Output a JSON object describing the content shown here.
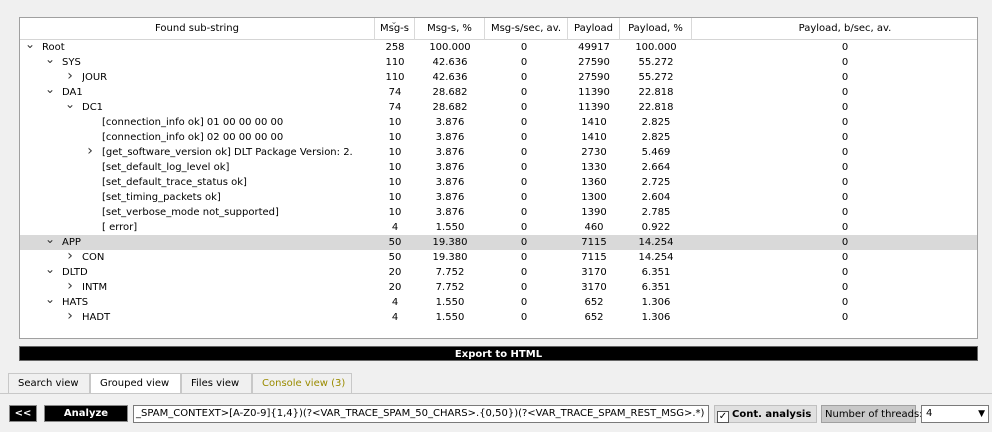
{
  "headers": {
    "name": "Found sub-string",
    "msgs": "Msg-s",
    "msgs_pct": "Msg-s, %",
    "msgs_rate": "Msg-s/sec, av.",
    "payload": "Payload",
    "payload_pct": "Payload, %",
    "payload_rate": "Payload, b/sec, av."
  },
  "rows": [
    {
      "level": 0,
      "arrow": "down",
      "name": "Root",
      "msgs": "258",
      "msgs_pct": "100.000",
      "msgs_rate": "0",
      "payload": "49917",
      "payload_pct": "100.000",
      "payload_rate": "0"
    },
    {
      "level": 1,
      "arrow": "down",
      "name": "SYS",
      "msgs": "110",
      "msgs_pct": "42.636",
      "msgs_rate": "0",
      "payload": "27590",
      "payload_pct": "55.272",
      "payload_rate": "0"
    },
    {
      "level": 2,
      "arrow": "right",
      "name": "JOUR",
      "msgs": "110",
      "msgs_pct": "42.636",
      "msgs_rate": "0",
      "payload": "27590",
      "payload_pct": "55.272",
      "payload_rate": "0"
    },
    {
      "level": 1,
      "arrow": "down",
      "name": "DA1",
      "msgs": "74",
      "msgs_pct": "28.682",
      "msgs_rate": "0",
      "payload": "11390",
      "payload_pct": "22.818",
      "payload_rate": "0"
    },
    {
      "level": 2,
      "arrow": "down",
      "name": "DC1",
      "msgs": "74",
      "msgs_pct": "28.682",
      "msgs_rate": "0",
      "payload": "11390",
      "payload_pct": "22.818",
      "payload_rate": "0"
    },
    {
      "level": 3,
      "arrow": "",
      "name": "[connection_info ok] 01 00 00 00 00",
      "msgs": "10",
      "msgs_pct": "3.876",
      "msgs_rate": "0",
      "payload": "1410",
      "payload_pct": "2.825",
      "payload_rate": "0"
    },
    {
      "level": 3,
      "arrow": "",
      "name": "[connection_info ok] 02 00 00 00 00",
      "msgs": "10",
      "msgs_pct": "3.876",
      "msgs_rate": "0",
      "payload": "1410",
      "payload_pct": "2.825",
      "payload_rate": "0"
    },
    {
      "level": 3,
      "arrow": "right",
      "name": "[get_software_version ok] DLT Package Version: 2.",
      "msgs": "10",
      "msgs_pct": "3.876",
      "msgs_rate": "0",
      "payload": "2730",
      "payload_pct": "5.469",
      "payload_rate": "0"
    },
    {
      "level": 3,
      "arrow": "",
      "name": "[set_default_log_level ok]",
      "msgs": "10",
      "msgs_pct": "3.876",
      "msgs_rate": "0",
      "payload": "1330",
      "payload_pct": "2.664",
      "payload_rate": "0"
    },
    {
      "level": 3,
      "arrow": "",
      "name": "[set_default_trace_status ok]",
      "msgs": "10",
      "msgs_pct": "3.876",
      "msgs_rate": "0",
      "payload": "1360",
      "payload_pct": "2.725",
      "payload_rate": "0"
    },
    {
      "level": 3,
      "arrow": "",
      "name": "[set_timing_packets ok]",
      "msgs": "10",
      "msgs_pct": "3.876",
      "msgs_rate": "0",
      "payload": "1300",
      "payload_pct": "2.604",
      "payload_rate": "0"
    },
    {
      "level": 3,
      "arrow": "",
      "name": "[set_verbose_mode not_supported]",
      "msgs": "10",
      "msgs_pct": "3.876",
      "msgs_rate": "0",
      "payload": "1390",
      "payload_pct": "2.785",
      "payload_rate": "0"
    },
    {
      "level": 3,
      "arrow": "",
      "name": "[ error]",
      "msgs": "4",
      "msgs_pct": "1.550",
      "msgs_rate": "0",
      "payload": "460",
      "payload_pct": "0.922",
      "payload_rate": "0"
    },
    {
      "level": 1,
      "arrow": "down",
      "name": "APP",
      "msgs": "50",
      "msgs_pct": "19.380",
      "msgs_rate": "0",
      "payload": "7115",
      "payload_pct": "14.254",
      "payload_rate": "0",
      "selected": true
    },
    {
      "level": 2,
      "arrow": "right",
      "name": "CON",
      "msgs": "50",
      "msgs_pct": "19.380",
      "msgs_rate": "0",
      "payload": "7115",
      "payload_pct": "14.254",
      "payload_rate": "0"
    },
    {
      "level": 1,
      "arrow": "down",
      "name": "DLTD",
      "msgs": "20",
      "msgs_pct": "7.752",
      "msgs_rate": "0",
      "payload": "3170",
      "payload_pct": "6.351",
      "payload_rate": "0"
    },
    {
      "level": 2,
      "arrow": "right",
      "name": "INTM",
      "msgs": "20",
      "msgs_pct": "7.752",
      "msgs_rate": "0",
      "payload": "3170",
      "payload_pct": "6.351",
      "payload_rate": "0"
    },
    {
      "level": 1,
      "arrow": "down",
      "name": "HATS",
      "msgs": "4",
      "msgs_pct": "1.550",
      "msgs_rate": "0",
      "payload": "652",
      "payload_pct": "1.306",
      "payload_rate": "0"
    },
    {
      "level": 2,
      "arrow": "right",
      "name": "HADT",
      "msgs": "4",
      "msgs_pct": "1.550",
      "msgs_rate": "0",
      "payload": "652",
      "payload_pct": "1.306",
      "payload_rate": "0"
    }
  ],
  "export_label": "Export to HTML",
  "tabs": [
    {
      "label": "Search view",
      "active": false
    },
    {
      "label": "Grouped view",
      "active": true
    },
    {
      "label": "Files view",
      "active": false
    },
    {
      "label": "Console view (3)",
      "active": false,
      "highlight": true
    }
  ],
  "bottom": {
    "back_label": "<<",
    "analyze_label": "Analyze",
    "regex_value": "_SPAM_CONTEXT>[A-Z0-9]{1,4})(?<VAR_TRACE_SPAM_50_CHARS>.{0,50})(?<VAR_TRACE_SPAM_REST_MSG>.*)",
    "cont_analysis_label": "Cont. analysis",
    "cont_analysis_checked": true,
    "threads_label": "Number of threads:",
    "threads_value": "4"
  },
  "icons": {
    "expanded": "chevron-down-icon",
    "collapsed": "chevron-right-icon",
    "sort": "sort-indicator-icon",
    "dropdown": "dropdown-arrow-icon"
  },
  "colors": {
    "selected_row": "#d9d9d9",
    "button_bg": "#000000",
    "console_tab_text": "#9a8b00"
  }
}
